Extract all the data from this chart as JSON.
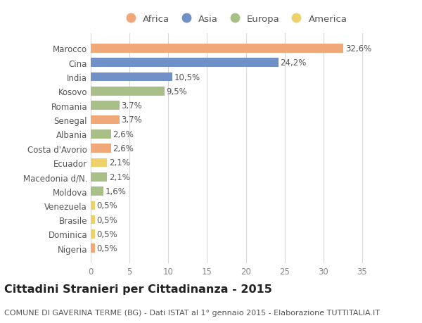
{
  "title": "Cittadini Stranieri per Cittadinanza - 2015",
  "subtitle": "COMUNE DI GAVERINA TERME (BG) - Dati ISTAT al 1° gennaio 2015 - Elaborazione TUTTITALIA.IT",
  "countries": [
    "Nigeria",
    "Dominica",
    "Brasile",
    "Venezuela",
    "Moldova",
    "Macedonia d/N.",
    "Ecuador",
    "Costa d'Avorio",
    "Albania",
    "Senegal",
    "Romania",
    "Kosovo",
    "India",
    "Cina",
    "Marocco"
  ],
  "values": [
    0.5,
    0.5,
    0.5,
    0.5,
    1.6,
    2.1,
    2.1,
    2.6,
    2.6,
    3.7,
    3.7,
    9.5,
    10.5,
    24.2,
    32.6
  ],
  "labels": [
    "0,5%",
    "0,5%",
    "0,5%",
    "0,5%",
    "1,6%",
    "2,1%",
    "2,1%",
    "2,6%",
    "2,6%",
    "3,7%",
    "3,7%",
    "9,5%",
    "10,5%",
    "24,2%",
    "32,6%"
  ],
  "continents": [
    "Africa",
    "America",
    "America",
    "America",
    "Europa",
    "Europa",
    "America",
    "Africa",
    "Europa",
    "Africa",
    "Europa",
    "Europa",
    "Asia",
    "Asia",
    "Africa"
  ],
  "continent_colors": {
    "Africa": "#F0A878",
    "Asia": "#7090C8",
    "Europa": "#A8C088",
    "America": "#F0D068"
  },
  "legend_order": [
    "Africa",
    "Asia",
    "Europa",
    "America"
  ],
  "xlim": [
    0,
    37
  ],
  "xticks": [
    0,
    5,
    10,
    15,
    20,
    25,
    30,
    35
  ],
  "background_color": "#ffffff",
  "grid_color": "#d8d8d8",
  "bar_height": 0.62,
  "title_fontsize": 11.5,
  "subtitle_fontsize": 8,
  "label_fontsize": 8.5,
  "tick_fontsize": 8.5,
  "legend_fontsize": 9.5
}
